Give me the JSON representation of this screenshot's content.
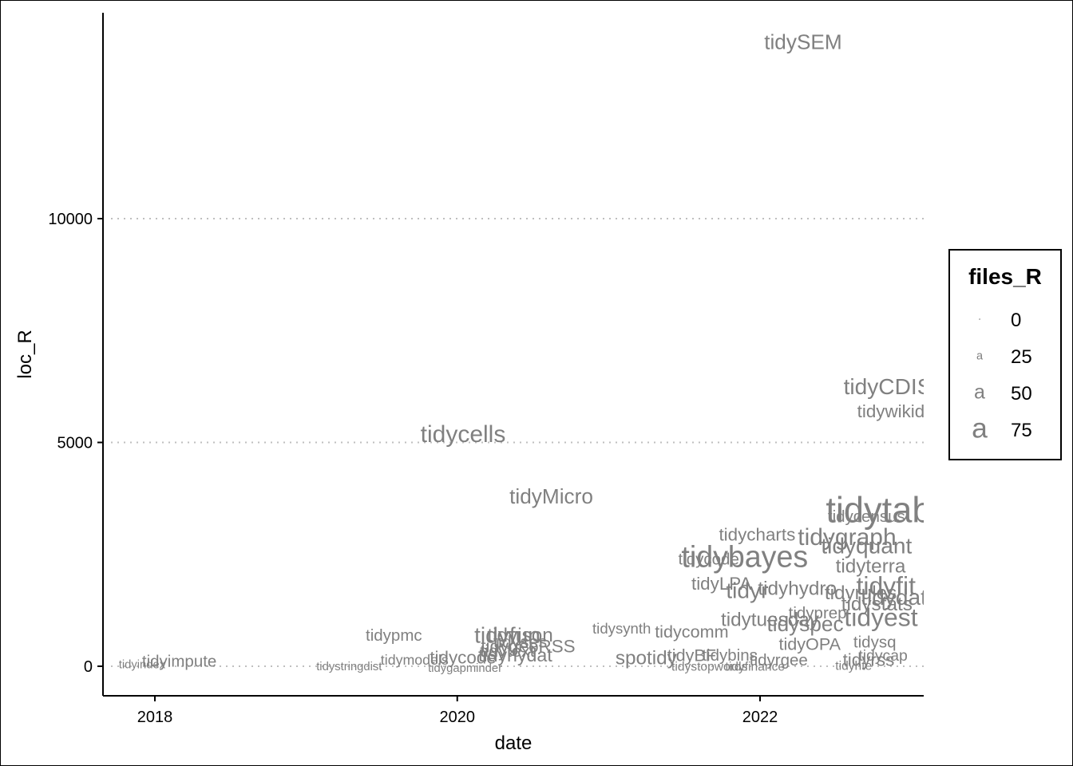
{
  "chart_data": {
    "type": "scatter",
    "title": "",
    "xlabel": "date",
    "ylabel": "loc_R",
    "xlim": [
      "2017-09-25",
      "2023-02-15"
    ],
    "ylim": [
      -650,
      14500
    ],
    "x_ticks": [
      {
        "value": "2018-01-01",
        "label": "2018"
      },
      {
        "value": "2020-01-01",
        "label": "2020"
      },
      {
        "value": "2022-01-01",
        "label": "2022"
      }
    ],
    "y_ticks": [
      {
        "value": 0,
        "label": "0"
      },
      {
        "value": 5000,
        "label": "5000"
      },
      {
        "value": 10000,
        "label": "10000"
      }
    ],
    "grid": "horizontal dotted at y ticks",
    "point_color": "#808080",
    "size_legend": {
      "title": "files_R",
      "placement": "right",
      "entries": [
        {
          "label": "0",
          "files_R": 0
        },
        {
          "label": "25",
          "files_R": 25
        },
        {
          "label": "50",
          "files_R": 50
        },
        {
          "label": "75",
          "files_R": 75
        }
      ]
    },
    "points": [
      {
        "label": "tidySEM",
        "date": "2022-04-15",
        "loc_R": 13950,
        "files_R": 40
      },
      {
        "label": "tidyCDISC",
        "date": "2022-11-25",
        "loc_R": 6250,
        "files_R": 45
      },
      {
        "label": "tidywikida",
        "date": "2022-11-25",
        "loc_R": 5700,
        "files_R": 30
      },
      {
        "label": "tidycells",
        "date": "2020-01-15",
        "loc_R": 5200,
        "files_R": 50
      },
      {
        "label": "tidyMicro",
        "date": "2020-08-15",
        "loc_R": 3800,
        "files_R": 40
      },
      {
        "label": "tidytab",
        "date": "2022-10-15",
        "loc_R": 3500,
        "files_R": 90
      },
      {
        "label": "tidycensus",
        "date": "2022-09-15",
        "loc_R": 3350,
        "files_R": 25
      },
      {
        "label": "tidycharts",
        "date": "2021-12-25",
        "loc_R": 2950,
        "files_R": 30
      },
      {
        "label": "tidygraph",
        "date": "2022-07-30",
        "loc_R": 2900,
        "files_R": 50
      },
      {
        "label": "tidyquant",
        "date": "2022-09-15",
        "loc_R": 2700,
        "files_R": 45
      },
      {
        "label": "tidybayes",
        "date": "2021-11-25",
        "loc_R": 2450,
        "files_R": 70
      },
      {
        "label": "tidycode",
        "date": "2021-08-30",
        "loc_R": 2400,
        "files_R": 25
      },
      {
        "label": "tidyterra",
        "date": "2022-09-25",
        "loc_R": 2250,
        "files_R": 35
      },
      {
        "label": "tidyLPA",
        "date": "2021-09-30",
        "loc_R": 1850,
        "files_R": 30
      },
      {
        "label": "tidyhydro",
        "date": "2022-04-01",
        "loc_R": 1750,
        "files_R": 35
      },
      {
        "label": "tidyfit",
        "date": "2022-11-01",
        "loc_R": 1800,
        "files_R": 55
      },
      {
        "label": "tidyr",
        "date": "2021-12-01",
        "loc_R": 1700,
        "files_R": 45
      },
      {
        "label": "tidyrules",
        "date": "2022-09-01",
        "loc_R": 1650,
        "files_R": 35
      },
      {
        "label": "tidydat",
        "date": "2022-11-20",
        "loc_R": 1550,
        "files_R": 45
      },
      {
        "label": "tidystats",
        "date": "2022-10-10",
        "loc_R": 1400,
        "files_R": 35
      },
      {
        "label": "tidyprep",
        "date": "2022-05-20",
        "loc_R": 1200,
        "files_R": 25
      },
      {
        "label": "tidyest",
        "date": "2022-10-20",
        "loc_R": 1100,
        "files_R": 55
      },
      {
        "label": "tidytuesday",
        "date": "2022-01-25",
        "loc_R": 1050,
        "files_R": 35
      },
      {
        "label": "tidyspec",
        "date": "2022-04-20",
        "loc_R": 950,
        "files_R": 40
      },
      {
        "label": "tidyfun",
        "date": "2020-05-01",
        "loc_R": 700,
        "files_R": 45
      },
      {
        "label": "tidyjson",
        "date": "2020-06-01",
        "loc_R": 700,
        "files_R": 35
      },
      {
        "label": "tidypmc",
        "date": "2019-08-01",
        "loc_R": 700,
        "files_R": 25
      },
      {
        "label": "tidysynth",
        "date": "2021-02-01",
        "loc_R": 850,
        "files_R": 20
      },
      {
        "label": "tidycomm",
        "date": "2021-07-20",
        "loc_R": 780,
        "files_R": 28
      },
      {
        "label": "tidyOPA",
        "date": "2022-05-01",
        "loc_R": 500,
        "files_R": 28
      },
      {
        "label": "tidysq",
        "date": "2022-10-05",
        "loc_R": 550,
        "files_R": 25
      },
      {
        "label": "tidygeoRSS",
        "date": "2020-06-20",
        "loc_R": 450,
        "files_R": 30
      },
      {
        "label": "tidyses",
        "date": "2020-06-01",
        "loc_R": 550,
        "files_R": 28
      },
      {
        "label": "tidytext",
        "date": "2020-05-01",
        "loc_R": 350,
        "files_R": 28
      },
      {
        "label": "tidyhydat",
        "date": "2020-05-20",
        "loc_R": 250,
        "files_R": 32
      },
      {
        "label": "tidycode",
        "date": "2020-01-15",
        "loc_R": 200,
        "files_R": 30
      },
      {
        "label": "spotidy",
        "date": "2021-04-01",
        "loc_R": 200,
        "files_R": 35
      },
      {
        "label": "tidyBF",
        "date": "2021-07-20",
        "loc_R": 250,
        "files_R": 28
      },
      {
        "label": "tidybins",
        "date": "2021-10-20",
        "loc_R": 250,
        "files_R": 25
      },
      {
        "label": "tidyimpute",
        "date": "2018-03-01",
        "loc_R": 120,
        "files_R": 25
      },
      {
        "label": "tidyindex",
        "date": "2017-12-01",
        "loc_R": 50,
        "files_R": 10
      },
      {
        "label": "tidymodels",
        "date": "2019-09-20",
        "loc_R": 150,
        "files_R": 18
      },
      {
        "label": "tidyrgee",
        "date": "2022-02-15",
        "loc_R": 150,
        "files_R": 25
      },
      {
        "label": "tidyrss",
        "date": "2022-09-20",
        "loc_R": 150,
        "files_R": 30
      },
      {
        "label": "tidycap",
        "date": "2022-10-25",
        "loc_R": 250,
        "files_R": 22
      },
      {
        "label": "tidystringdist",
        "date": "2019-04-15",
        "loc_R": 0,
        "files_R": 10
      },
      {
        "label": "tidygapminder",
        "date": "2020-01-20",
        "loc_R": -30,
        "files_R": 10
      },
      {
        "label": "tidystopwords",
        "date": "2021-09-01",
        "loc_R": 0,
        "files_R": 12
      },
      {
        "label": "tidyfinance",
        "date": "2021-12-20",
        "loc_R": 0,
        "files_R": 12
      },
      {
        "label": "tidyhte",
        "date": "2022-08-15",
        "loc_R": 20,
        "files_R": 12
      }
    ]
  }
}
